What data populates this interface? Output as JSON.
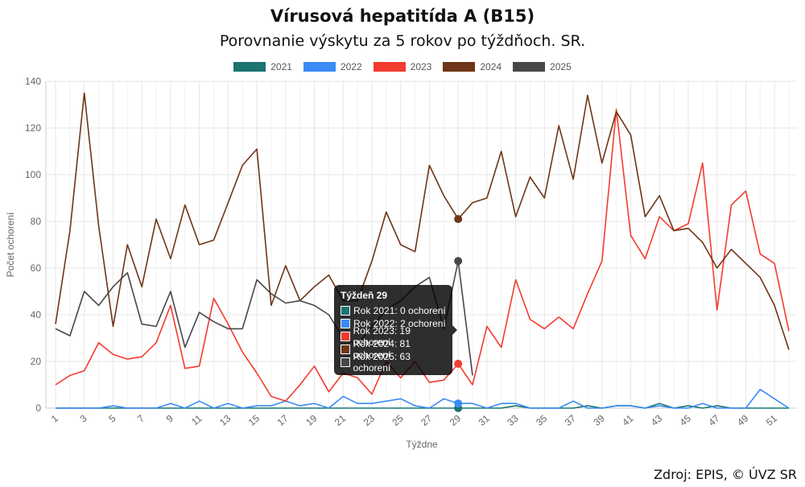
{
  "chart_data": {
    "type": "line",
    "title": "Vírusová hepatitída A (B15)",
    "subtitle": "Porovnanie výskytu za 5 rokov po týždňoch. SR.",
    "xlabel": "Týždne",
    "ylabel": "Počet ochorení",
    "ylim": [
      0,
      140
    ],
    "yticks": [
      0,
      20,
      40,
      60,
      80,
      100,
      120,
      140
    ],
    "xticks": [
      1,
      3,
      5,
      7,
      9,
      11,
      13,
      15,
      17,
      19,
      21,
      23,
      25,
      27,
      29,
      31,
      33,
      35,
      37,
      39,
      41,
      43,
      45,
      47,
      49,
      51
    ],
    "grid": true,
    "legend_position": "top",
    "series": [
      {
        "name": "2021",
        "color": "#1a7470",
        "values": [
          0,
          0,
          0,
          0,
          0,
          0,
          0,
          0,
          0,
          0,
          0,
          0,
          0,
          0,
          0,
          0,
          0,
          0,
          0,
          0,
          0,
          0,
          0,
          0,
          0,
          0,
          0,
          0,
          0,
          0,
          0,
          0,
          1,
          0,
          0,
          0,
          0,
          1,
          0,
          1,
          1,
          0,
          2,
          0,
          1,
          0,
          1,
          0,
          0,
          0,
          0,
          0
        ]
      },
      {
        "name": "2022",
        "color": "#3b8bf7",
        "values": [
          0,
          0,
          0,
          0,
          1,
          0,
          0,
          0,
          2,
          0,
          3,
          0,
          2,
          0,
          1,
          1,
          3,
          1,
          2,
          0,
          5,
          2,
          2,
          3,
          4,
          1,
          0,
          4,
          2,
          2,
          0,
          2,
          2,
          0,
          0,
          0,
          3,
          0,
          0,
          1,
          1,
          0,
          1,
          0,
          0,
          2,
          0,
          0,
          0,
          8,
          4,
          0
        ]
      },
      {
        "name": "2023",
        "color": "#f43b2f",
        "values": [
          10,
          14,
          16,
          28,
          23,
          21,
          22,
          28,
          44,
          17,
          18,
          47,
          36,
          24,
          15,
          5,
          3,
          10,
          18,
          7,
          15,
          13,
          6,
          20,
          13,
          20,
          11,
          12,
          19,
          10,
          35,
          26,
          55,
          38,
          34,
          39,
          34,
          49,
          63,
          128,
          74,
          64,
          82,
          76,
          79,
          105,
          42,
          87,
          93,
          66,
          62,
          33
        ]
      },
      {
        "name": "2024",
        "color": "#6e3516",
        "values": [
          36,
          76,
          135,
          78,
          35,
          70,
          52,
          81,
          64,
          87,
          70,
          72,
          88,
          104,
          111,
          44,
          61,
          46,
          52,
          57,
          46,
          46,
          63,
          84,
          70,
          67,
          104,
          91,
          81,
          88,
          90,
          110,
          82,
          99,
          90,
          121,
          98,
          134,
          105,
          127,
          117,
          82,
          91,
          76,
          77,
          71,
          60,
          68,
          62,
          56,
          44,
          25
        ]
      },
      {
        "name": "2025",
        "color": "#48474a",
        "values": [
          34,
          31,
          50,
          44,
          52,
          58,
          36,
          35,
          50,
          26,
          41,
          37,
          34,
          34,
          55,
          49,
          45,
          46,
          44,
          40,
          30,
          27,
          35,
          42,
          46,
          52,
          56,
          34,
          63,
          14
        ]
      }
    ],
    "tooltip": {
      "title": "Týždeň 29",
      "rows": [
        "Rok 2021: 0 ochorení",
        "Rok 2022: 2 ochorení",
        "Rok 2023: 19 ochorení",
        "Rok 2024: 81 ochorení",
        "Rok 2025: 63 ochorení"
      ],
      "week": 29
    }
  },
  "source": "Zdroj: EPIS, © ÚVZ SR"
}
